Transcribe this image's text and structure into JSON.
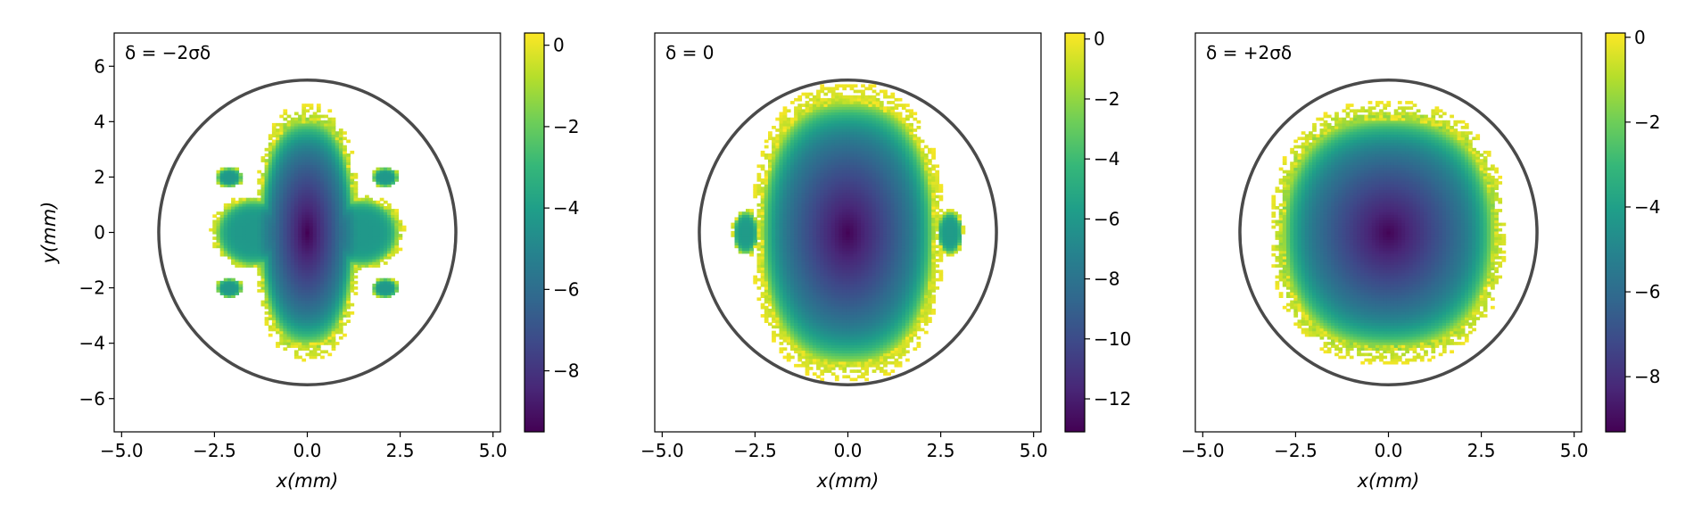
{
  "chart_data": [
    {
      "type": "heatmap",
      "annotation": "δ = −2σδ",
      "xlabel": "x(mm)",
      "ylabel": "y(mm)",
      "xlim": [
        -5.2,
        5.2
      ],
      "ylim": [
        -7.2,
        7.2
      ],
      "xticks": [
        -5.0,
        -2.5,
        0.0,
        2.5,
        5.0
      ],
      "xtick_labels": [
        "−5.0",
        "−2.5",
        "0.0",
        "2.5",
        "5.0"
      ],
      "yticks": [
        -6,
        -4,
        -2,
        0,
        2,
        4,
        6
      ],
      "ytick_labels": [
        "−6",
        "−4",
        "−2",
        "0",
        "2",
        "4",
        "6"
      ],
      "colorbar": {
        "min": -9.5,
        "max": 0.3,
        "ticks": [
          0,
          -2,
          -4,
          -6,
          -8
        ],
        "tick_labels": [
          "0",
          "−2",
          "−4",
          "−6",
          "−8"
        ]
      },
      "boundary_circle": {
        "cx": 0,
        "cy": 0,
        "rx": 4.0,
        "ry": 5.5,
        "color": "#4a4a4a"
      },
      "core": {
        "hx": 1.35,
        "hy": 4.3,
        "center_value": -9.5
      },
      "lobes": [
        {
          "cx": -1.45,
          "cy": 0,
          "rx": 1.05,
          "ry": 1.25
        },
        {
          "cx": 1.45,
          "cy": 0,
          "rx": 1.05,
          "ry": 1.25
        },
        {
          "cx": -2.1,
          "cy": 2.0,
          "rx": 0.35,
          "ry": 0.35
        },
        {
          "cx": 2.1,
          "cy": 2.0,
          "rx": 0.35,
          "ry": 0.35
        },
        {
          "cx": -2.1,
          "cy": -2.0,
          "rx": 0.35,
          "ry": 0.35
        },
        {
          "cx": 2.1,
          "cy": -2.0,
          "rx": 0.35,
          "ry": 0.35
        }
      ]
    },
    {
      "type": "heatmap",
      "annotation": "δ = 0",
      "xlabel": "x(mm)",
      "ylabel": "",
      "xlim": [
        -5.2,
        5.2
      ],
      "ylim": [
        -7.2,
        7.2
      ],
      "xticks": [
        -5.0,
        -2.5,
        0.0,
        2.5,
        5.0
      ],
      "xtick_labels": [
        "−5.0",
        "−2.5",
        "0.0",
        "2.5",
        "5.0"
      ],
      "yticks": [],
      "ytick_labels": [],
      "colorbar": {
        "min": -13.1,
        "max": 0.2,
        "ticks": [
          0,
          -2,
          -4,
          -6,
          -8,
          -10,
          -12
        ],
        "tick_labels": [
          "0",
          "−2",
          "−4",
          "−6",
          "−8",
          "−10",
          "−12"
        ]
      },
      "boundary_circle": {
        "cx": 0,
        "cy": 0,
        "rx": 4.0,
        "ry": 5.5,
        "color": "#4a4a4a"
      },
      "core": {
        "hx": 2.45,
        "hy": 5.0,
        "center_value": -13.0
      },
      "lobes": [
        {
          "cx": -2.75,
          "cy": 0,
          "rx": 0.35,
          "ry": 0.8
        },
        {
          "cx": 2.75,
          "cy": 0,
          "rx": 0.35,
          "ry": 0.8
        }
      ]
    },
    {
      "type": "heatmap",
      "annotation": "δ = +2σδ",
      "xlabel": "x(mm)",
      "ylabel": "",
      "xlim": [
        -5.2,
        5.2
      ],
      "ylim": [
        -7.2,
        7.2
      ],
      "xticks": [
        -5.0,
        -2.5,
        0.0,
        2.5,
        5.0
      ],
      "xtick_labels": [
        "−5.0",
        "−2.5",
        "0.0",
        "2.5",
        "5.0"
      ],
      "yticks": [],
      "ytick_labels": [],
      "colorbar": {
        "min": -9.3,
        "max": 0.1,
        "ticks": [
          0,
          -2,
          -4,
          -6,
          -8
        ],
        "tick_labels": [
          "0",
          "−2",
          "−4",
          "−6",
          "−8"
        ]
      },
      "boundary_circle": {
        "cx": 0,
        "cy": 0,
        "rx": 4.0,
        "ry": 5.5,
        "color": "#4a4a4a"
      },
      "core": {
        "hx": 3.0,
        "hy": 4.4,
        "center_value": -9.2
      },
      "lobes": []
    }
  ]
}
